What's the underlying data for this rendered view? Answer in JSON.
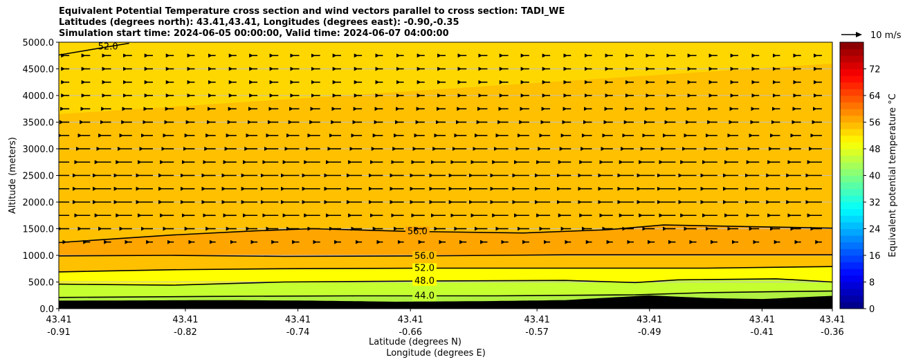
{
  "title": {
    "line1": "Equivalent Potential Temperature cross section and wind vectors parallel to cross section: TADI_WE",
    "line2": "Latitudes (degrees north): 43.41,43.41, Longitudes (degrees east): -0.90,-0.35",
    "line3": "Simulation start time: 2024-06-05 00:00:00, Valid time: 2024-06-07 04:00:00"
  },
  "chart_data": {
    "type": "heatmap",
    "subtype": "filled contour cross-section with contour lines and wind vectors",
    "ylabel": "Altitude (meters)",
    "xlabel_line1": "Latitude (degrees N)",
    "xlabel_line2": "Longitude (degrees E)",
    "ylim": [
      0,
      5000
    ],
    "yticks": [
      "0.0",
      "500.0",
      "1000.0",
      "1500.0",
      "2000.0",
      "2500.0",
      "3000.0",
      "3500.0",
      "4000.0",
      "4500.0",
      "5000.0"
    ],
    "xticks": [
      {
        "lat": "43.41",
        "lon": "-0.91"
      },
      {
        "lat": "43.41",
        "lon": "-0.82"
      },
      {
        "lat": "43.41",
        "lon": "-0.74"
      },
      {
        "lat": "43.41",
        "lon": "-0.66"
      },
      {
        "lat": "43.41",
        "lon": "-0.57"
      },
      {
        "lat": "43.41",
        "lon": "-0.49"
      },
      {
        "lat": "43.41",
        "lon": "-0.41"
      },
      {
        "lat": "43.41",
        "lon": "-0.36"
      }
    ],
    "lon_range": [
      -0.91,
      -0.36
    ],
    "grid": "horizontal",
    "colorbar": {
      "label": "Equivalent potential temperature °C",
      "range": [
        0,
        80
      ],
      "ticks": [
        "0",
        "8",
        "16",
        "24",
        "32",
        "40",
        "48",
        "56",
        "64",
        "72"
      ],
      "colormap": "jet"
    },
    "quiver_key": {
      "label": "10 m/s",
      "speed": 10
    },
    "terrain": {
      "lon": [
        -0.91,
        -0.85,
        -0.79,
        -0.73,
        -0.67,
        -0.61,
        -0.55,
        -0.49,
        -0.45,
        -0.41,
        -0.36
      ],
      "alt": [
        150,
        155,
        160,
        150,
        130,
        140,
        160,
        250,
        200,
        180,
        240
      ]
    },
    "contour_lines": [
      {
        "label": "44.0",
        "lon": [
          -0.91,
          -0.8,
          -0.7,
          -0.6,
          -0.5,
          -0.45,
          -0.4,
          -0.36
        ],
        "alt": [
          210,
          230,
          240,
          240,
          260,
          300,
          320,
          330
        ]
      },
      {
        "label": "48.0",
        "lon": [
          -0.91,
          -0.83,
          -0.75,
          -0.65,
          -0.55,
          -0.5,
          -0.47,
          -0.4,
          -0.36
        ],
        "alt": [
          460,
          440,
          500,
          520,
          530,
          490,
          540,
          560,
          500
        ]
      },
      {
        "label": "52.0",
        "lon": [
          -0.91,
          -0.83,
          -0.75,
          -0.65,
          -0.55,
          -0.45,
          -0.36
        ],
        "alt": [
          690,
          730,
          750,
          760,
          760,
          760,
          790
        ]
      },
      {
        "label": "56.0",
        "lon": [
          -0.91,
          -0.83,
          -0.75,
          -0.65,
          -0.55,
          -0.45,
          -0.36
        ],
        "alt": [
          990,
          1000,
          980,
          990,
          1010,
          1010,
          1010
        ]
      },
      {
        "label": "56.0",
        "lon": [
          -0.91,
          -0.83,
          -0.77,
          -0.73,
          -0.66,
          -0.58,
          -0.52,
          -0.48,
          -0.42,
          -0.36
        ],
        "alt": [
          1240,
          1380,
          1460,
          1500,
          1450,
          1420,
          1480,
          1570,
          1540,
          1510
        ]
      },
      {
        "label": "52.0",
        "lon": [
          -0.91,
          -0.86
        ],
        "alt": [
          4760,
          4980
        ]
      }
    ],
    "shading_levels": [
      {
        "label": "40-44",
        "color": "#b0f040"
      },
      {
        "label": "44-48",
        "color": "#c6ff30"
      },
      {
        "label": "48-52",
        "color": "#ffff00"
      },
      {
        "label": "52-56",
        "color": "#ffd700"
      },
      {
        "label": "56-60",
        "color": "#ffc000"
      },
      {
        "label": "60-64",
        "color": "#ffa500"
      }
    ],
    "wind_rows": [
      {
        "alt": 4750,
        "u": -3
      },
      {
        "alt": 4500,
        "u": -3
      },
      {
        "alt": 4250,
        "u": -3
      },
      {
        "alt": 4000,
        "u": -3
      },
      {
        "alt": 3750,
        "u": -3.5
      },
      {
        "alt": 3500,
        "u": -4
      },
      {
        "alt": 3250,
        "u": -5
      },
      {
        "alt": 3000,
        "u": -6
      },
      {
        "alt": 2750,
        "u": -7
      },
      {
        "alt": 2500,
        "u": -8
      },
      {
        "alt": 2250,
        "u": -8
      },
      {
        "alt": 2000,
        "u": -8
      },
      {
        "alt": 1750,
        "u": -7
      },
      {
        "alt": 1500,
        "u": -5
      },
      {
        "alt": 1250,
        "u": -2
      }
    ]
  },
  "colors": {
    "terrain": "#000000",
    "contour": "#000000",
    "grid": "#c0c0c0"
  }
}
